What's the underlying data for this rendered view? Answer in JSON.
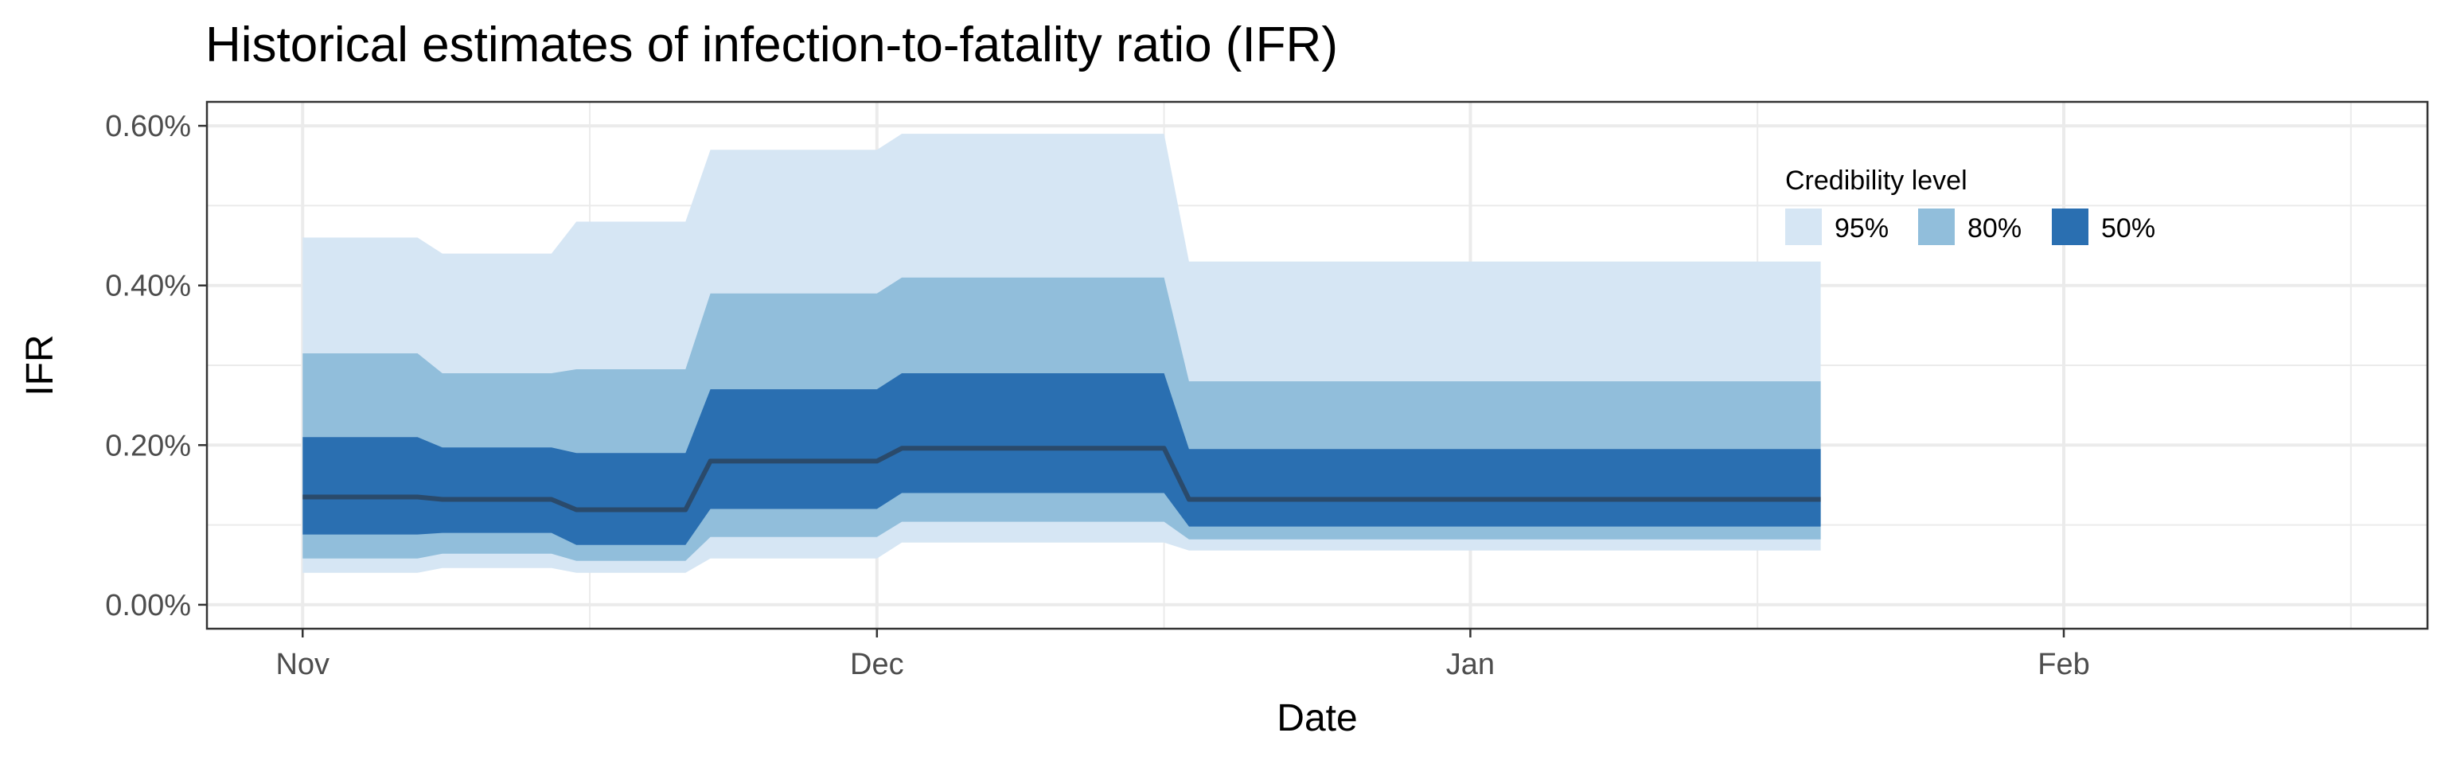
{
  "chart_data": {
    "type": "area",
    "title": "Historical estimates of infection-to-fatality ratio (IFR)",
    "xlabel": "Date",
    "ylabel": "IFR",
    "x_axis_type": "date",
    "xlim": [
      "2020-10-27",
      "2021-02-20"
    ],
    "ylim": [
      -0.0003,
      0.0063
    ],
    "x_ticks": [
      {
        "date": "2020-11-01",
        "label": "Nov"
      },
      {
        "date": "2020-12-01",
        "label": "Dec"
      },
      {
        "date": "2021-01-01",
        "label": "Jan"
      },
      {
        "date": "2021-02-01",
        "label": "Feb"
      }
    ],
    "x_minor_ticks": [
      "2020-11-16",
      "2020-12-16",
      "2021-01-16",
      "2021-02-16"
    ],
    "y_ticks": [
      {
        "value": 0.0,
        "label": "0.00%"
      },
      {
        "value": 0.002,
        "label": "0.20%"
      },
      {
        "value": 0.004,
        "label": "0.40%"
      },
      {
        "value": 0.006,
        "label": "0.60%"
      }
    ],
    "y_minor_ticks": [
      0.001,
      0.003,
      0.005
    ],
    "grid": true,
    "legend": {
      "title": "Credibility level",
      "position": "top-right",
      "entries": [
        "95%",
        "80%",
        "50%"
      ]
    },
    "colors": {
      "band_95": "#d6e6f4",
      "band_80": "#91bedb",
      "band_50": "#2a6fb1",
      "median": "#2a4a6b",
      "grid": "#ebebeb",
      "border": "#333333"
    },
    "x": [
      "2020-11-01",
      "2020-11-07",
      "2020-11-14",
      "2020-11-21",
      "2020-12-01",
      "2020-12-16",
      "2021-01-18"
    ],
    "median": [
      0.00135,
      0.00132,
      0.00119,
      0.0018,
      0.00196,
      0.00132,
      0.00132
    ],
    "bands": [
      {
        "level": "95%",
        "lower": [
          0.0004,
          0.00046,
          0.0004,
          0.00058,
          0.00078,
          0.00068,
          0.00068
        ],
        "upper": [
          0.0046,
          0.0044,
          0.0048,
          0.0057,
          0.0059,
          0.0043,
          0.0043
        ]
      },
      {
        "level": "80%",
        "lower": [
          0.00058,
          0.00064,
          0.00055,
          0.00085,
          0.00104,
          0.00082,
          0.00082
        ],
        "upper": [
          0.00315,
          0.0029,
          0.00295,
          0.0039,
          0.0041,
          0.0028,
          0.0028
        ]
      },
      {
        "level": "50%",
        "lower": [
          0.00088,
          0.0009,
          0.00075,
          0.0012,
          0.0014,
          0.00098,
          0.00098
        ],
        "upper": [
          0.0021,
          0.00197,
          0.0019,
          0.0027,
          0.0029,
          0.00195,
          0.00195
        ]
      }
    ]
  }
}
